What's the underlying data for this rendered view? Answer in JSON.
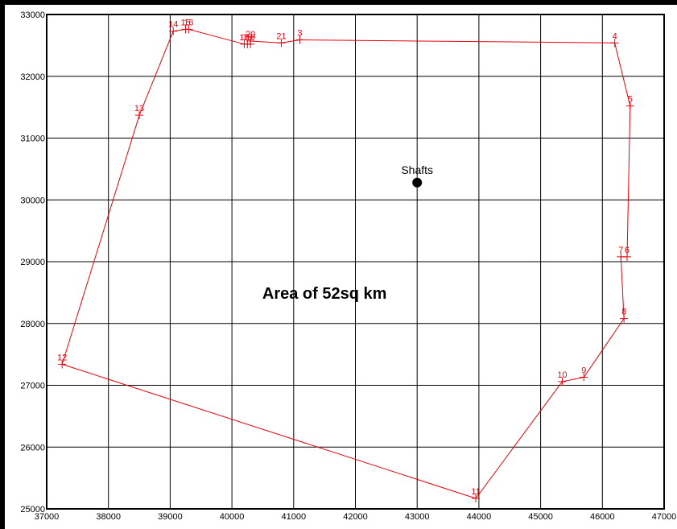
{
  "chart_data": {
    "type": "scatter",
    "title": "",
    "xlabel": "",
    "ylabel": "",
    "xlim": [
      37000,
      47000
    ],
    "ylim": [
      25000,
      33000
    ],
    "xticks": [
      37000,
      38000,
      39000,
      40000,
      41000,
      42000,
      43000,
      44000,
      45000,
      46000,
      47000
    ],
    "yticks": [
      25000,
      26000,
      27000,
      28000,
      29000,
      30000,
      31000,
      32000,
      33000
    ],
    "xtick_labels": [
      "37000",
      "38000",
      "39000",
      "40000",
      "41000",
      "42000",
      "43000",
      "44000",
      "45000",
      "46000",
      "47000"
    ],
    "ytick_labels": [
      "25000",
      "26000",
      "27000",
      "28000",
      "29000",
      "30000",
      "31000",
      "32000",
      "33000"
    ],
    "grid": true,
    "boundary_color": "#e8000b",
    "boundary": {
      "closed": true,
      "points": [
        {
          "label": "3",
          "x": 41100,
          "y": 32590
        },
        {
          "label": "4",
          "x": 46200,
          "y": 32540
        },
        {
          "label": "5",
          "x": 46450,
          "y": 31520
        },
        {
          "label": "6",
          "x": 46400,
          "y": 29080
        },
        {
          "label": "7",
          "x": 46300,
          "y": 29080
        },
        {
          "label": "8",
          "x": 46350,
          "y": 28080
        },
        {
          "label": "9",
          "x": 45700,
          "y": 27130
        },
        {
          "label": "10",
          "x": 45350,
          "y": 27060
        },
        {
          "label": "11",
          "x": 43950,
          "y": 25170
        },
        {
          "label": "12",
          "x": 37250,
          "y": 27340
        },
        {
          "label": "13",
          "x": 38500,
          "y": 31370
        },
        {
          "label": "14",
          "x": 39050,
          "y": 32730
        },
        {
          "label": "15",
          "x": 39250,
          "y": 32760
        },
        {
          "label": "16",
          "x": 39300,
          "y": 32760
        },
        {
          "label": "17",
          "x": 40200,
          "y": 32520
        },
        {
          "label": "18",
          "x": 40250,
          "y": 32520
        },
        {
          "label": "19",
          "x": 40300,
          "y": 32520
        },
        {
          "label": "20",
          "x": 40300,
          "y": 32570
        },
        {
          "label": "21",
          "x": 40800,
          "y": 32540
        }
      ]
    },
    "annotations": [
      {
        "text": "Area of 52sq km",
        "x": 41500,
        "y": 28400
      },
      {
        "text": "Shafts",
        "x": 43000,
        "y": 30280,
        "marker": "filled-circle"
      }
    ]
  }
}
